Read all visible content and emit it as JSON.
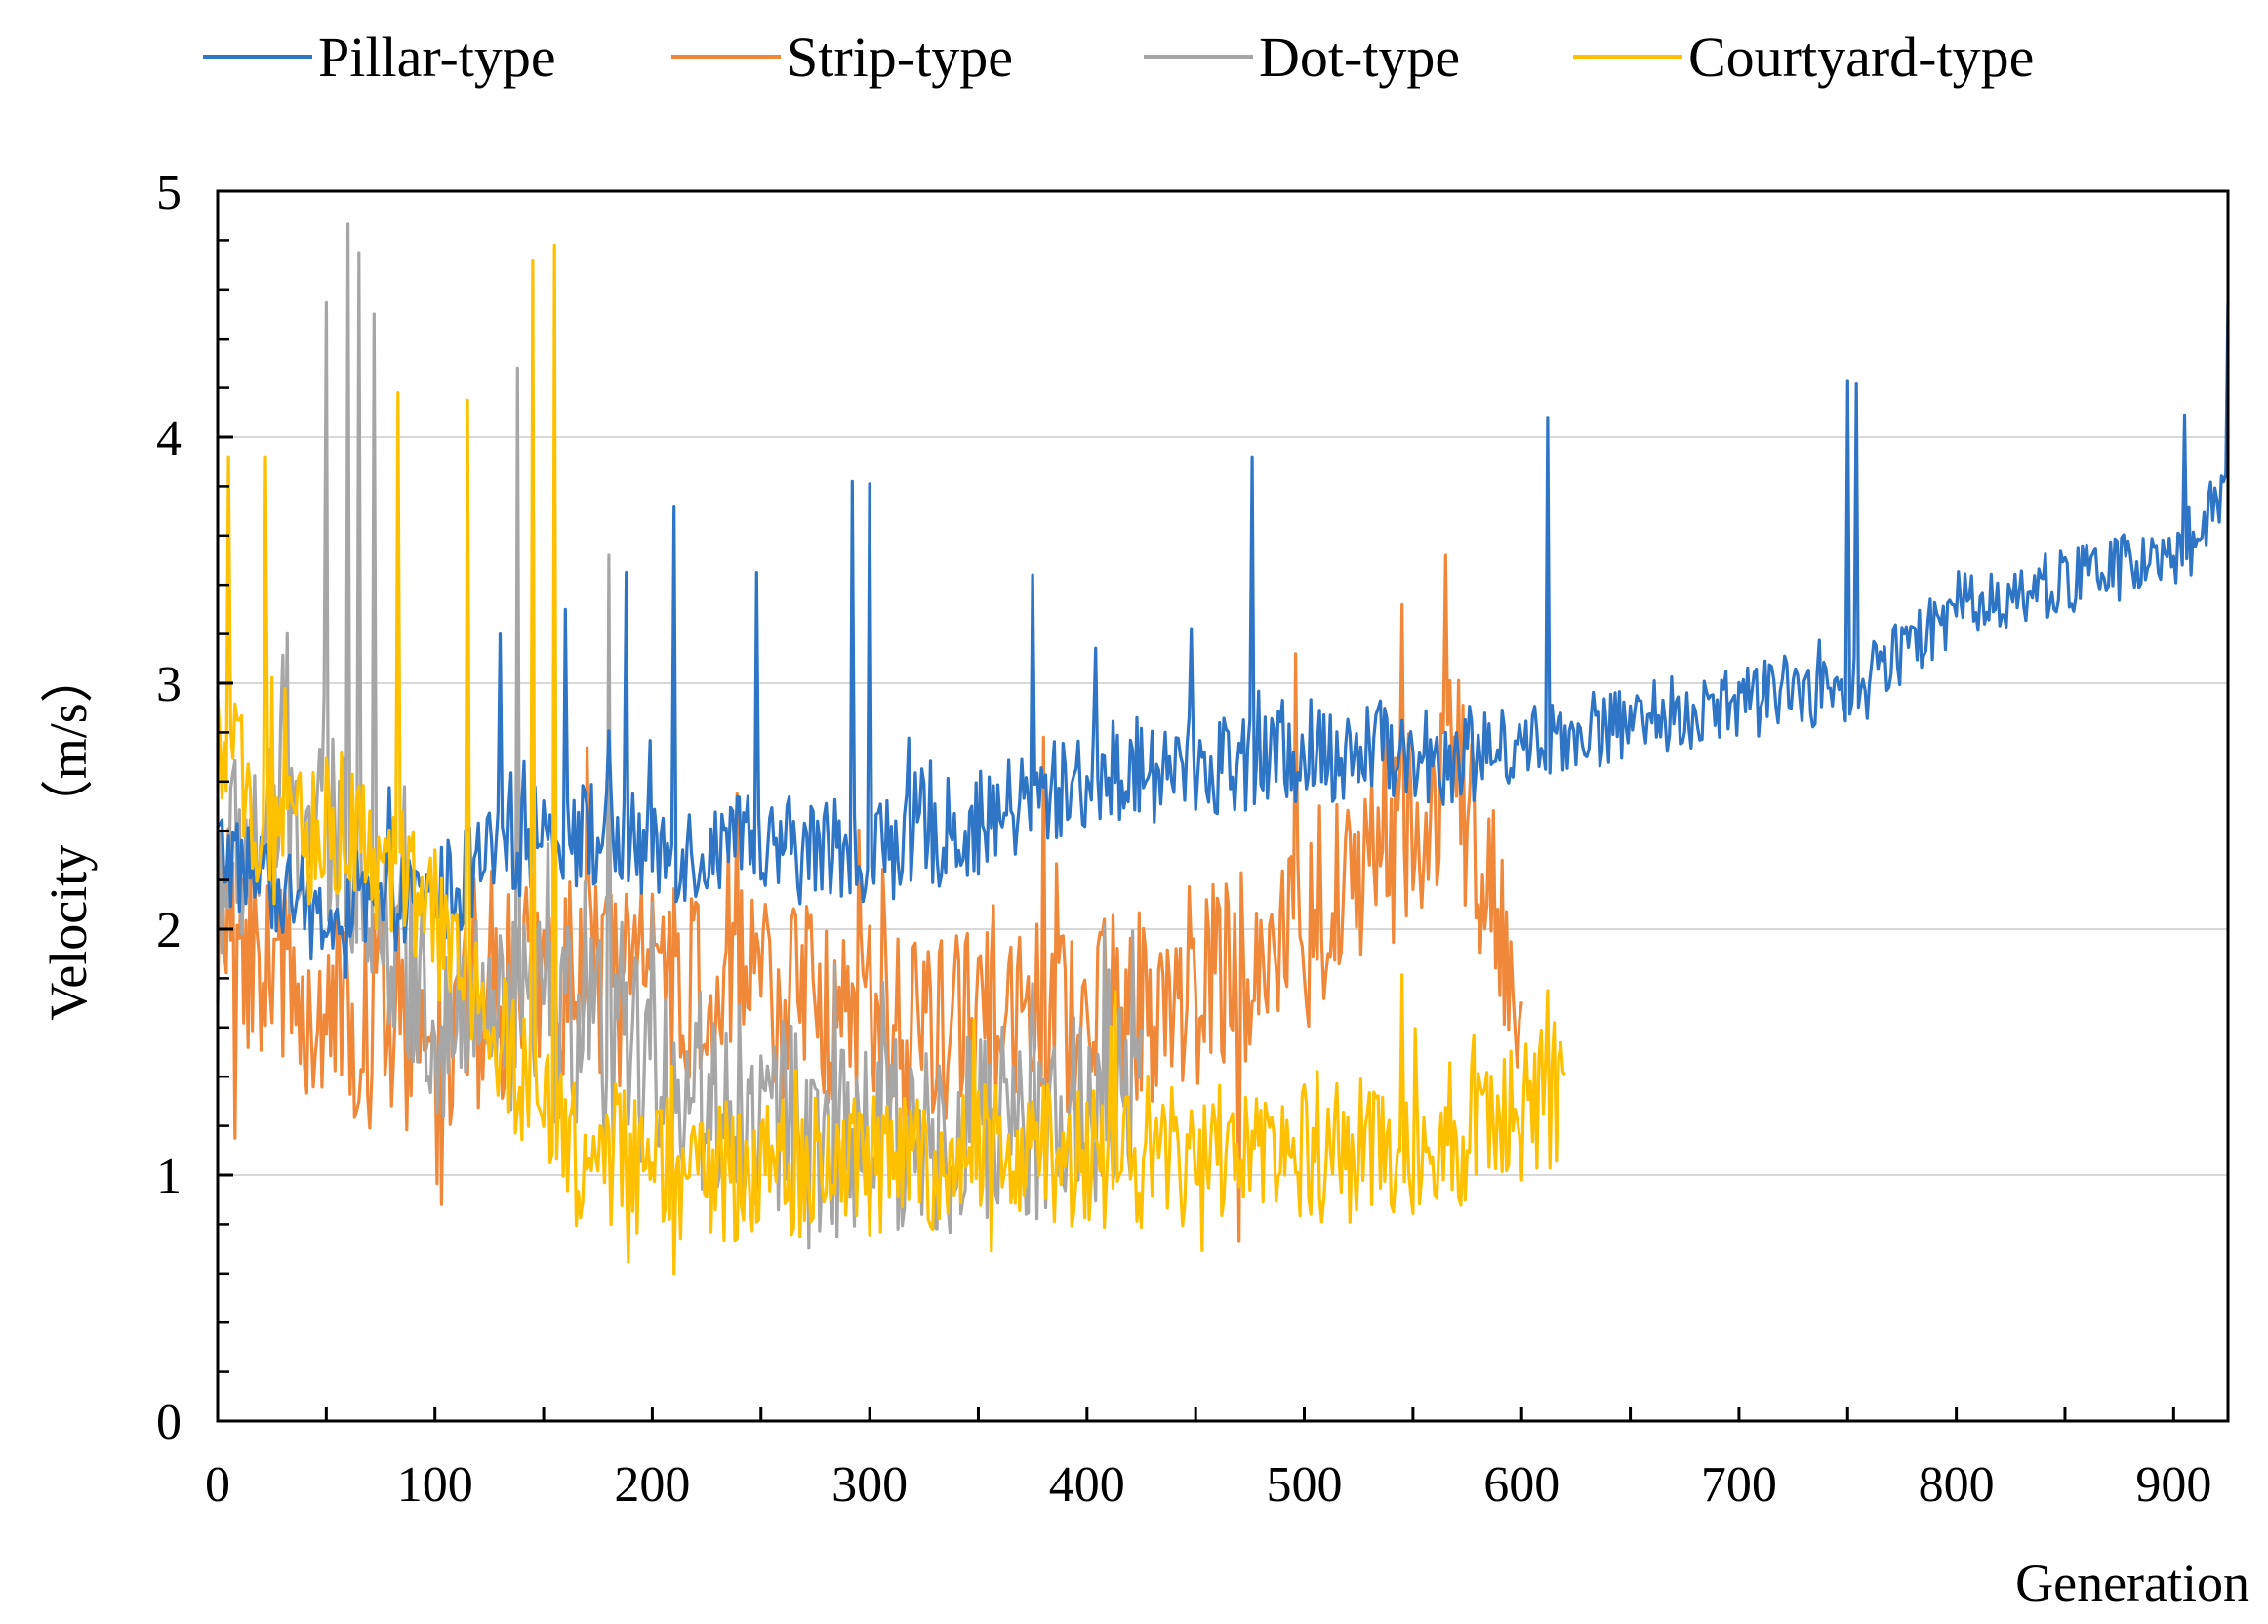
{
  "chart_data": {
    "type": "line",
    "title": "",
    "xlabel": "Generation",
    "ylabel": "Velocity （m/s）",
    "xlim": [
      0,
      925
    ],
    "ylim": [
      0,
      5
    ],
    "xticks": [
      0,
      100,
      200,
      300,
      400,
      500,
      600,
      700,
      800,
      900
    ],
    "yticks": [
      0,
      1,
      2,
      3,
      4,
      5
    ],
    "grid": "horizontal",
    "legend_position": "top",
    "series": [
      {
        "name": "Pillar-type",
        "color": "#2E75C6",
        "length": 925,
        "anchors": [
          [
            0,
            2.3
          ],
          [
            50,
            2.0
          ],
          [
            100,
            2.1
          ],
          [
            150,
            2.4
          ],
          [
            200,
            2.3
          ],
          [
            250,
            2.3
          ],
          [
            300,
            2.3
          ],
          [
            350,
            2.4
          ],
          [
            400,
            2.6
          ],
          [
            450,
            2.65
          ],
          [
            500,
            2.7
          ],
          [
            580,
            2.7
          ],
          [
            600,
            2.75
          ],
          [
            700,
            2.9
          ],
          [
            760,
            3.0
          ],
          [
            800,
            3.3
          ],
          [
            850,
            3.4
          ],
          [
            900,
            3.5
          ],
          [
            925,
            3.75
          ]
        ],
        "noise": 0.22,
        "spikes": [
          [
            130,
            3.2
          ],
          [
            160,
            3.3
          ],
          [
            188,
            3.45
          ],
          [
            210,
            3.72
          ],
          [
            248,
            3.45
          ],
          [
            292,
            3.82
          ],
          [
            300,
            3.81
          ],
          [
            375,
            3.44
          ],
          [
            476,
            3.92
          ],
          [
            612,
            4.08
          ],
          [
            750,
            4.23
          ],
          [
            754,
            4.22
          ],
          [
            905,
            4.09
          ],
          [
            925,
            4.55
          ]
        ]
      },
      {
        "name": "Strip-type",
        "color": "#F0883A",
        "length": 600,
        "anchors": [
          [
            0,
            2.0
          ],
          [
            50,
            1.6
          ],
          [
            100,
            1.5
          ],
          [
            150,
            1.8
          ],
          [
            200,
            1.7
          ],
          [
            250,
            1.7
          ],
          [
            300,
            1.6
          ],
          [
            350,
            1.55
          ],
          [
            400,
            1.6
          ],
          [
            450,
            1.7
          ],
          [
            500,
            1.9
          ],
          [
            540,
            2.3
          ],
          [
            570,
            2.6
          ],
          [
            600,
            1.6
          ]
        ],
        "noise": 0.42,
        "spikes": [
          [
            8,
            1.15
          ],
          [
            103,
            0.88
          ],
          [
            239,
            2.55
          ],
          [
            380,
            2.78
          ],
          [
            496,
            3.12
          ],
          [
            545,
            3.32
          ],
          [
            565,
            3.52
          ],
          [
            470,
            0.73
          ]
        ]
      },
      {
        "name": "Dot-type",
        "color": "#A6A6A6",
        "length": 425,
        "anchors": [
          [
            0,
            2.2
          ],
          [
            30,
            2.4
          ],
          [
            60,
            2.3
          ],
          [
            100,
            1.6
          ],
          [
            150,
            1.6
          ],
          [
            200,
            1.4
          ],
          [
            250,
            1.2
          ],
          [
            300,
            1.1
          ],
          [
            350,
            1.15
          ],
          [
            400,
            1.2
          ],
          [
            425,
            1.3
          ]
        ],
        "noise": 0.42,
        "spikes": [
          [
            60,
            4.87
          ],
          [
            65,
            4.75
          ],
          [
            72,
            4.5
          ],
          [
            50,
            4.55
          ],
          [
            138,
            4.28
          ],
          [
            180,
            3.52
          ],
          [
            285,
            0.75
          ]
        ]
      },
      {
        "name": "Courtyard-type",
        "color": "#FFC000",
        "length": 620,
        "anchors": [
          [
            0,
            2.7
          ],
          [
            30,
            2.3
          ],
          [
            60,
            2.4
          ],
          [
            100,
            2.0
          ],
          [
            130,
            1.5
          ],
          [
            160,
            1.1
          ],
          [
            200,
            1.0
          ],
          [
            250,
            1.0
          ],
          [
            300,
            1.0
          ],
          [
            350,
            1.05
          ],
          [
            400,
            1.05
          ],
          [
            450,
            1.05
          ],
          [
            500,
            1.05
          ],
          [
            550,
            1.1
          ],
          [
            600,
            1.2
          ],
          [
            620,
            1.35
          ]
        ],
        "noise": 0.3,
        "spikes": [
          [
            5,
            3.92
          ],
          [
            22,
            3.92
          ],
          [
            115,
            4.15
          ],
          [
            145,
            4.72
          ],
          [
            155,
            4.78
          ],
          [
            83,
            4.18
          ],
          [
            210,
            0.6
          ],
          [
            612,
            1.75
          ]
        ]
      }
    ]
  }
}
